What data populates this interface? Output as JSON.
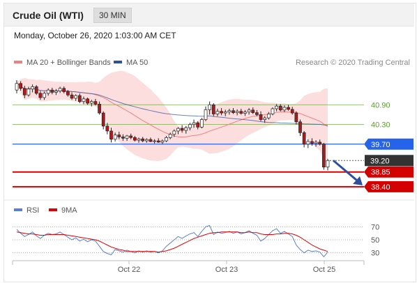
{
  "header": {
    "title": "Crude Oil (WTI)",
    "timeframe": "30 MIN"
  },
  "datetime": "Monday, October 26, 2020 1:03:00 AM CET",
  "credit": "Research © 2020 Trading Central",
  "legend": {
    "price": [
      {
        "name": "MA 20 + Bollinger Bands",
        "color": "#f08080"
      },
      {
        "name": "MA 50",
        "color": "#2c4f9e"
      }
    ],
    "rsi": [
      {
        "name": "RSI",
        "color": "#5b7fd6"
      },
      {
        "name": "9MA",
        "color": "#e00000"
      }
    ]
  },
  "colors": {
    "up_candle": "#ffffff",
    "down_candle": "#b0191b",
    "wick": "#222222",
    "resistance": "#5aa02c",
    "pivot": "#2563eb",
    "support": "#d40000",
    "current": "#333333",
    "arrow": "#2c4f9e",
    "band_fill": "#fbd3d3"
  },
  "chart_data": [
    {
      "type": "candlestick",
      "title": "Crude Oil (WTI)",
      "ylim": [
        38.1,
        41.8
      ],
      "x_ticks": [
        "Oct 22",
        "Oct 23",
        "Oct 25"
      ],
      "levels": [
        {
          "value": 40.9,
          "label": "40.90",
          "kind": "resistance"
        },
        {
          "value": 40.3,
          "label": "40.30",
          "kind": "resistance"
        },
        {
          "value": 39.7,
          "label": "39.70",
          "kind": "pivot"
        },
        {
          "value": 39.2,
          "label": "39.20",
          "kind": "current"
        },
        {
          "value": 38.85,
          "label": "38.85",
          "kind": "support"
        },
        {
          "value": 38.4,
          "label": "38.40",
          "kind": "support"
        }
      ],
      "candles": [
        [
          41.35,
          41.65,
          41.25,
          41.55
        ],
        [
          41.55,
          41.62,
          41.33,
          41.4
        ],
        [
          41.4,
          41.48,
          41.1,
          41.2
        ],
        [
          41.2,
          41.45,
          41.15,
          41.38
        ],
        [
          41.38,
          41.52,
          41.28,
          41.45
        ],
        [
          41.45,
          41.5,
          41.2,
          41.25
        ],
        [
          41.25,
          41.32,
          41.05,
          41.12
        ],
        [
          41.12,
          41.3,
          41.05,
          41.25
        ],
        [
          41.25,
          41.4,
          41.18,
          41.35
        ],
        [
          41.35,
          41.42,
          41.22,
          41.28
        ],
        [
          41.28,
          41.38,
          41.2,
          41.32
        ],
        [
          41.32,
          41.45,
          41.26,
          41.4
        ],
        [
          41.4,
          41.46,
          41.25,
          41.3
        ],
        [
          41.3,
          41.35,
          41.15,
          41.2
        ],
        [
          41.2,
          41.28,
          41.05,
          41.1
        ],
        [
          41.1,
          41.22,
          41.02,
          41.18
        ],
        [
          41.18,
          41.25,
          40.95,
          41.0
        ],
        [
          41.0,
          41.15,
          40.92,
          41.08
        ],
        [
          41.08,
          41.12,
          40.9,
          40.95
        ],
        [
          40.95,
          41.05,
          40.85,
          41.0
        ],
        [
          41.0,
          41.08,
          40.88,
          40.92
        ],
        [
          40.92,
          41.0,
          40.6,
          40.65
        ],
        [
          40.65,
          40.7,
          40.15,
          40.25
        ],
        [
          40.25,
          40.35,
          40.0,
          40.1
        ],
        [
          40.1,
          40.2,
          39.75,
          39.85
        ],
        [
          39.85,
          40.05,
          39.78,
          39.98
        ],
        [
          39.98,
          40.08,
          39.85,
          39.92
        ],
        [
          39.92,
          40.0,
          39.8,
          39.88
        ],
        [
          39.88,
          39.98,
          39.8,
          39.95
        ],
        [
          39.95,
          40.02,
          39.85,
          39.9
        ],
        [
          39.9,
          39.95,
          39.78,
          39.82
        ],
        [
          39.82,
          39.9,
          39.74,
          39.86
        ],
        [
          39.86,
          39.92,
          39.76,
          39.8
        ],
        [
          39.8,
          39.88,
          39.74,
          39.84
        ],
        [
          39.84,
          39.9,
          39.76,
          39.78
        ],
        [
          39.78,
          39.85,
          39.72,
          39.8
        ],
        [
          39.8,
          39.88,
          39.74,
          39.76
        ],
        [
          39.76,
          39.84,
          39.7,
          39.8
        ],
        [
          39.8,
          39.95,
          39.76,
          39.9
        ],
        [
          39.9,
          40.05,
          39.85,
          40.0
        ],
        [
          40.0,
          40.15,
          39.92,
          40.1
        ],
        [
          40.1,
          40.22,
          40.0,
          40.18
        ],
        [
          40.18,
          40.28,
          40.05,
          40.12
        ],
        [
          40.12,
          40.25,
          40.02,
          40.2
        ],
        [
          40.2,
          40.35,
          40.12,
          40.3
        ],
        [
          40.3,
          40.45,
          40.2,
          40.35
        ],
        [
          40.35,
          40.4,
          40.15,
          40.22
        ],
        [
          40.22,
          40.5,
          40.18,
          40.45
        ],
        [
          40.45,
          40.85,
          40.4,
          40.75
        ],
        [
          40.75,
          41.0,
          40.6,
          40.9
        ],
        [
          40.9,
          40.95,
          40.55,
          40.62
        ],
        [
          40.62,
          40.78,
          40.55,
          40.7
        ],
        [
          40.7,
          40.8,
          40.58,
          40.65
        ],
        [
          40.65,
          40.75,
          40.55,
          40.68
        ],
        [
          40.68,
          40.78,
          40.6,
          40.72
        ],
        [
          40.72,
          40.8,
          40.62,
          40.66
        ],
        [
          40.66,
          40.76,
          40.58,
          40.7
        ],
        [
          40.7,
          40.78,
          40.6,
          40.64
        ],
        [
          40.64,
          40.74,
          40.56,
          40.68
        ],
        [
          40.68,
          40.8,
          40.6,
          40.74
        ],
        [
          40.74,
          40.82,
          40.62,
          40.66
        ],
        [
          40.66,
          40.74,
          40.55,
          40.6
        ],
        [
          40.6,
          40.7,
          40.4,
          40.45
        ],
        [
          40.45,
          40.55,
          40.35,
          40.5
        ],
        [
          40.5,
          40.68,
          40.45,
          40.62
        ],
        [
          40.62,
          40.82,
          40.58,
          40.78
        ],
        [
          40.78,
          40.92,
          40.7,
          40.86
        ],
        [
          40.86,
          40.92,
          40.7,
          40.74
        ],
        [
          40.74,
          40.88,
          40.68,
          40.82
        ],
        [
          40.82,
          40.9,
          40.72,
          40.76
        ],
        [
          40.76,
          40.84,
          40.6,
          40.65
        ],
        [
          40.65,
          40.7,
          40.3,
          40.38
        ],
        [
          40.38,
          40.45,
          39.95,
          40.05
        ],
        [
          40.05,
          40.1,
          39.6,
          39.7
        ],
        [
          39.7,
          39.85,
          39.58,
          39.78
        ],
        [
          39.78,
          39.88,
          39.65,
          39.72
        ],
        [
          39.72,
          39.82,
          39.62,
          39.76
        ],
        [
          39.76,
          39.84,
          39.66,
          39.7
        ],
        [
          39.7,
          39.74,
          38.92,
          39.0
        ],
        [
          39.0,
          39.25,
          38.9,
          39.2
        ]
      ]
    },
    {
      "type": "line",
      "title": "RSI",
      "ylim": [
        20,
        80
      ],
      "y_ticks": [
        70,
        50,
        30
      ],
      "series": [
        {
          "name": "RSI",
          "values": [
            66,
            60,
            55,
            58,
            62,
            56,
            52,
            57,
            60,
            58,
            59,
            62,
            58,
            54,
            50,
            53,
            48,
            51,
            47,
            50,
            48,
            40,
            32,
            29,
            27,
            35,
            33,
            31,
            34,
            32,
            30,
            33,
            31,
            33,
            31,
            32,
            30,
            33,
            40,
            45,
            50,
            55,
            52,
            56,
            59,
            61,
            55,
            63,
            70,
            72,
            58,
            62,
            60,
            61,
            63,
            60,
            62,
            59,
            61,
            64,
            60,
            57,
            48,
            52,
            58,
            64,
            67,
            60,
            63,
            59,
            55,
            42,
            35,
            30,
            34,
            32,
            33,
            31,
            24,
            31
          ]
        },
        {
          "name": "9MA",
          "values": [
            62,
            61,
            60,
            59,
            59,
            58,
            57,
            57,
            58,
            58,
            58,
            58,
            58,
            57,
            56,
            55,
            54,
            53,
            52,
            51,
            50,
            48,
            45,
            42,
            39,
            37,
            35,
            34,
            32,
            32,
            32,
            32,
            32,
            32,
            32,
            32,
            31,
            32,
            33,
            35,
            37,
            40,
            43,
            46,
            49,
            52,
            54,
            56,
            58,
            60,
            61,
            61,
            62,
            62,
            62,
            62,
            62,
            61,
            61,
            62,
            61,
            61,
            59,
            58,
            58,
            58,
            59,
            59,
            60,
            60,
            59,
            57,
            54,
            50,
            46,
            42,
            39,
            36,
            34,
            32
          ]
        }
      ]
    }
  ]
}
